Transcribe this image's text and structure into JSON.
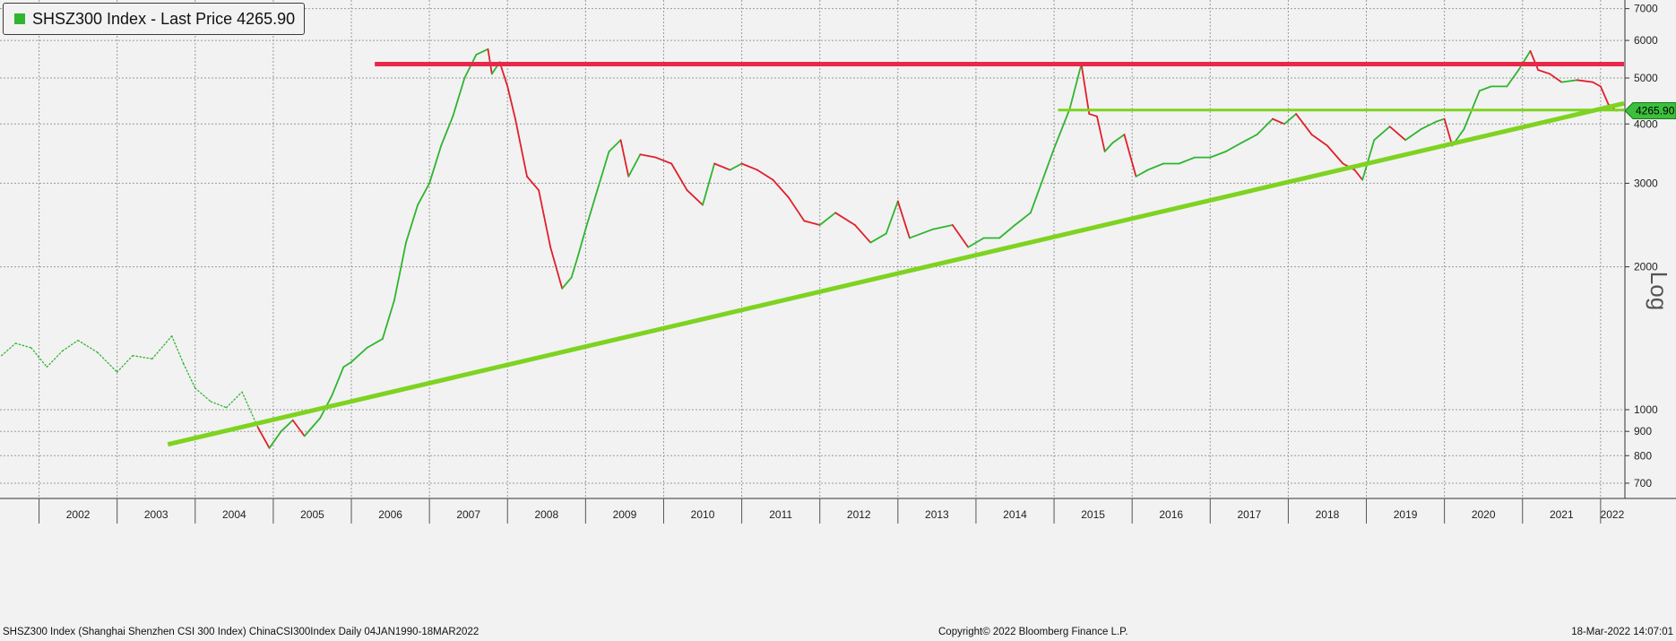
{
  "legend": {
    "label": "SHSZ300 Index - Last Price 4265.90",
    "swatch_color": "#2fb52f"
  },
  "footer": {
    "left": "SHSZ300 Index (Shanghai Shenzhen CSI 300 Index) ChinaCSI300Index  Daily 04JAN1990-18MAR2022",
    "center": "Copyright© 2022 Bloomberg Finance L.P.",
    "right": "18-Mar-2022 14:07:01"
  },
  "axis": {
    "scale_label": "Log",
    "last_price_tag": "4265.90"
  },
  "colors": {
    "up": "#2fb52f",
    "down": "#e0202a",
    "resistance": "#e8284a",
    "trendline": "#7ed321",
    "last_tag": "#3cbf3c"
  },
  "chart_data": {
    "type": "line",
    "title": "SHSZ300 Index - Last Price 4265.90",
    "yscale": "log",
    "ylim": [
      650,
      7300
    ],
    "xlim": [
      2001.5,
      2022.3
    ],
    "y_ticks": [
      700,
      800,
      900,
      1000,
      2000,
      3000,
      4000,
      5000,
      6000,
      7000
    ],
    "x_tick_labels": [
      "2002",
      "2003",
      "2004",
      "2005",
      "2006",
      "2007",
      "2008",
      "2009",
      "2010",
      "2011",
      "2012",
      "2013",
      "2014",
      "2015",
      "2016",
      "2017",
      "2018",
      "2019",
      "2020",
      "2021",
      "2022"
    ],
    "grid": true,
    "legend_position": "top-left",
    "series": [
      {
        "name": "SHSZ300 Index",
        "x": [
          2001.52,
          2001.7,
          2001.9,
          2002.1,
          2002.3,
          2002.5,
          2002.75,
          2003.0,
          2003.2,
          2003.45,
          2003.7,
          2003.85,
          2004.0,
          2004.2,
          2004.4,
          2004.6,
          2004.8,
          2004.95,
          2005.1,
          2005.25,
          2005.4,
          2005.6,
          2005.75,
          2005.9,
          2006.0,
          2006.2,
          2006.4,
          2006.55,
          2006.7,
          2006.85,
          2007.0,
          2007.15,
          2007.3,
          2007.45,
          2007.6,
          2007.75,
          2007.8,
          2007.9,
          2008.0,
          2008.1,
          2008.25,
          2008.4,
          2008.55,
          2008.7,
          2008.82,
          2008.9,
          2009.0,
          2009.15,
          2009.3,
          2009.45,
          2009.55,
          2009.7,
          2009.9,
          2010.1,
          2010.3,
          2010.5,
          2010.65,
          2010.85,
          2011.0,
          2011.2,
          2011.4,
          2011.6,
          2011.8,
          2012.0,
          2012.2,
          2012.45,
          2012.65,
          2012.85,
          2013.0,
          2013.15,
          2013.45,
          2013.7,
          2013.9,
          2014.1,
          2014.3,
          2014.5,
          2014.7,
          2014.9,
          2015.0,
          2015.2,
          2015.35,
          2015.45,
          2015.55,
          2015.65,
          2015.75,
          2015.9,
          2016.05,
          2016.2,
          2016.4,
          2016.6,
          2016.8,
          2017.0,
          2017.2,
          2017.4,
          2017.6,
          2017.8,
          2017.95,
          2018.1,
          2018.3,
          2018.5,
          2018.7,
          2018.85,
          2018.95,
          2019.1,
          2019.3,
          2019.5,
          2019.7,
          2019.9,
          2020.0,
          2020.1,
          2020.25,
          2020.45,
          2020.6,
          2020.8,
          2020.95,
          2021.1,
          2021.2,
          2021.35,
          2021.5,
          2021.7,
          2021.9,
          2022.0,
          2022.1,
          2022.2
        ],
        "values": [
          1300,
          1380,
          1350,
          1230,
          1330,
          1400,
          1320,
          1200,
          1300,
          1280,
          1430,
          1250,
          1110,
          1040,
          1010,
          1090,
          920,
          830,
          900,
          950,
          880,
          960,
          1070,
          1230,
          1260,
          1350,
          1410,
          1700,
          2250,
          2700,
          3000,
          3600,
          4150,
          5000,
          5600,
          5750,
          5100,
          5400,
          4800,
          4100,
          3100,
          2900,
          2200,
          1800,
          1900,
          2100,
          2400,
          2900,
          3500,
          3700,
          3100,
          3450,
          3400,
          3300,
          2900,
          2700,
          3300,
          3200,
          3300,
          3200,
          3050,
          2800,
          2500,
          2450,
          2600,
          2450,
          2250,
          2350,
          2750,
          2300,
          2400,
          2450,
          2200,
          2300,
          2300,
          2450,
          2600,
          3200,
          3550,
          4300,
          5350,
          4200,
          4150,
          3500,
          3650,
          3800,
          3100,
          3200,
          3300,
          3300,
          3400,
          3400,
          3500,
          3650,
          3800,
          4100,
          4000,
          4200,
          3800,
          3600,
          3300,
          3200,
          3050,
          3700,
          3950,
          3700,
          3900,
          4050,
          4100,
          3600,
          3900,
          4700,
          4800,
          4800,
          5200,
          5700,
          5200,
          5100,
          4900,
          4950,
          4900,
          4800,
          4400,
          4265.9
        ]
      }
    ],
    "lines": {
      "resistance": {
        "x": [
          2006.3,
          2022.3
        ],
        "y": [
          5350,
          5350
        ]
      },
      "support_horizontal": {
        "x": [
          2015.05,
          2022.3
        ],
        "y": [
          4280,
          4280
        ]
      },
      "trendline": {
        "x": [
          2003.65,
          2022.3
        ],
        "y": [
          845,
          4420
        ]
      }
    }
  }
}
